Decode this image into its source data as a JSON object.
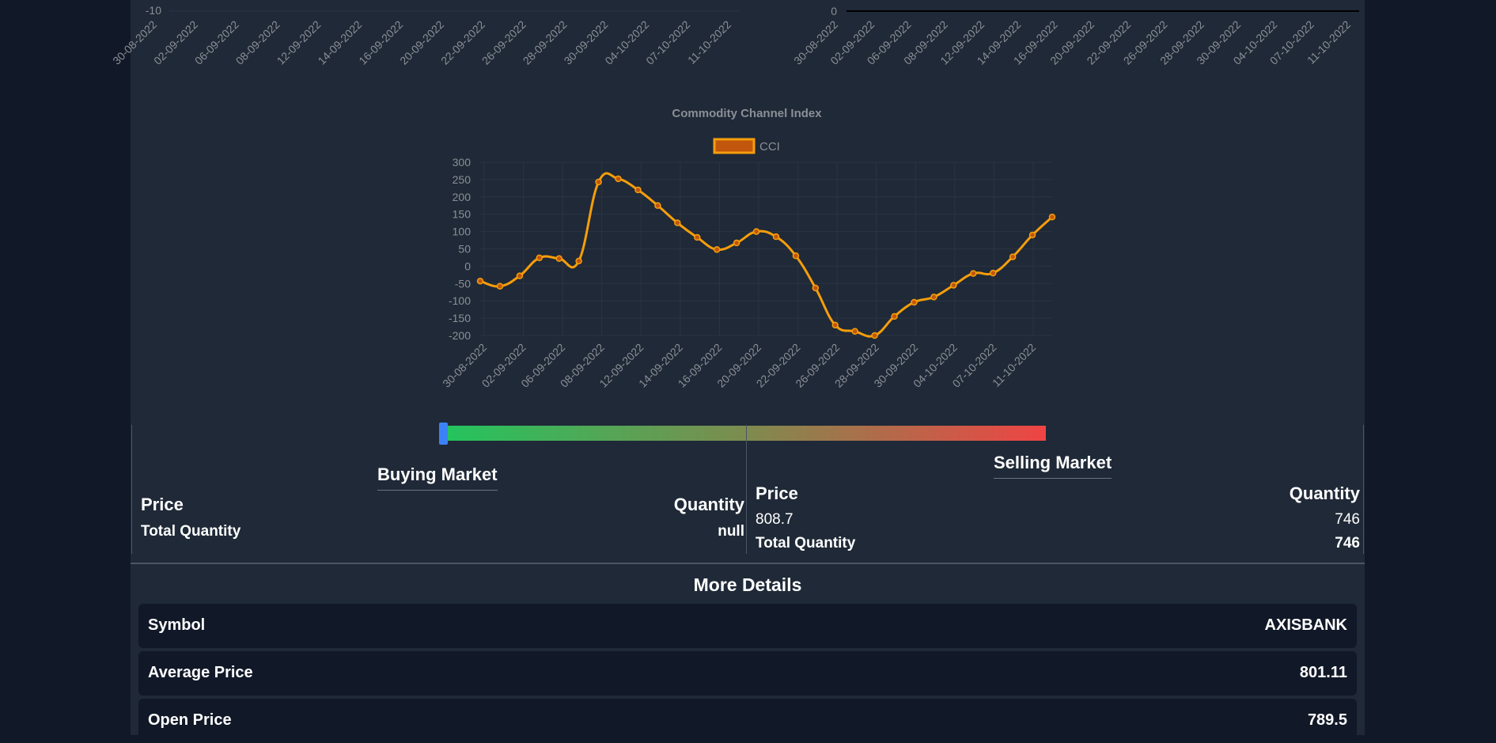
{
  "top_left_chart": {
    "y_tick_visible": "-10",
    "x_labels": [
      "30-08-2022",
      "02-09-2022",
      "06-09-2022",
      "08-09-2022",
      "12-09-2022",
      "14-09-2022",
      "16-09-2022",
      "20-09-2022",
      "22-09-2022",
      "26-09-2022",
      "28-09-2022",
      "30-09-2022",
      "04-10-2022",
      "07-10-2022",
      "11-10-2022"
    ]
  },
  "top_right_chart": {
    "y_tick_visible": "0",
    "x_labels": [
      "30-08-2022",
      "02-09-2022",
      "06-09-2022",
      "08-09-2022",
      "12-09-2022",
      "14-09-2022",
      "16-09-2022",
      "20-09-2022",
      "22-09-2022",
      "26-09-2022",
      "28-09-2022",
      "30-09-2022",
      "04-10-2022",
      "07-10-2022",
      "11-10-2022"
    ]
  },
  "chart_data": {
    "type": "line",
    "title": "Commodity Channel Index",
    "legend": "CCI",
    "legend_placement": "top-center",
    "grid": true,
    "ylim": [
      -200,
      300
    ],
    "y_ticks": [
      300,
      250,
      200,
      150,
      100,
      50,
      0,
      -50,
      -100,
      -150,
      -200
    ],
    "x_tick_labels": [
      "30-08-2022",
      "02-09-2022",
      "06-09-2022",
      "08-09-2022",
      "12-09-2022",
      "14-09-2022",
      "16-09-2022",
      "20-09-2022",
      "22-09-2022",
      "26-09-2022",
      "28-09-2022",
      "30-09-2022",
      "04-10-2022",
      "07-10-2022",
      "11-10-2022"
    ],
    "series": [
      {
        "name": "CCI",
        "color": "#f59e0b",
        "values": [
          -43,
          -58,
          -28,
          24,
          22,
          15,
          243,
          252,
          220,
          175,
          125,
          83,
          48,
          67,
          100,
          85,
          30,
          -63,
          -170,
          -188,
          -200,
          -145,
          -104,
          -89,
          -55,
          -21,
          -20,
          27,
          90,
          142
        ]
      }
    ]
  },
  "sentiment": {
    "gradient_start": "#22c55e",
    "gradient_end": "#ef4444",
    "marker_color": "#3b82f6"
  },
  "buying_market": {
    "title": "Buying Market",
    "price_header": "Price",
    "quantity_header": "Quantity",
    "total_label": "Total Quantity",
    "total_value": "null"
  },
  "selling_market": {
    "title": "Selling Market",
    "price_header": "Price",
    "quantity_header": "Quantity",
    "rows": [
      {
        "price": "808.7",
        "quantity": "746"
      }
    ],
    "total_label": "Total Quantity",
    "total_value": "746"
  },
  "more_details": {
    "title": "More Details",
    "rows": [
      {
        "key": "Symbol",
        "value": "AXISBANK"
      },
      {
        "key": "Average Price",
        "value": "801.11"
      },
      {
        "key": "Open Price",
        "value": "789.5"
      }
    ]
  }
}
